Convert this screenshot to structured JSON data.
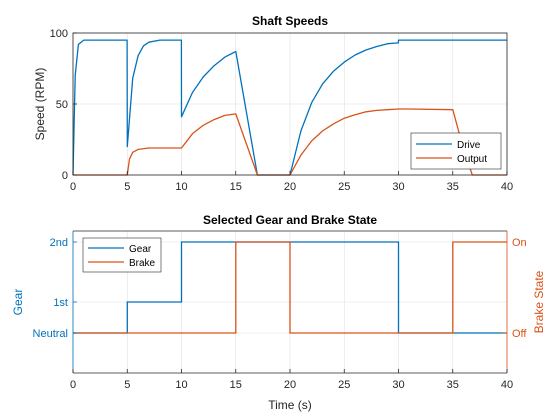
{
  "colors": {
    "drive": "#0072BD",
    "output": "#D95319",
    "gear": "#0072BD",
    "brake": "#D95319"
  },
  "chart_data": [
    {
      "type": "line",
      "title": "Shaft Speeds",
      "xlabel": "",
      "ylabel": "Speed (RPM)",
      "xlim": [
        0,
        40
      ],
      "ylim": [
        0,
        100
      ],
      "xticks": [
        "0",
        "5",
        "10",
        "15",
        "20",
        "25",
        "30",
        "35",
        "40"
      ],
      "yticks": [
        "0",
        "50",
        "100"
      ],
      "grid": true,
      "legend_position": "bottom-right",
      "series": [
        {
          "name": "Drive",
          "x": [
            0,
            0.2,
            0.5,
            1,
            2,
            4.99,
            5,
            5.5,
            6,
            6.5,
            7,
            8,
            9.99,
            10,
            11,
            12,
            13,
            14,
            15,
            17,
            17.5,
            20,
            21,
            22,
            23,
            24,
            25,
            26,
            27,
            28,
            29,
            29.99,
            30,
            31,
            40
          ],
          "y": [
            0,
            70,
            92,
            95,
            95,
            95,
            20,
            68,
            84,
            91,
            93.5,
            95,
            95,
            41,
            58,
            69,
            77,
            83,
            87,
            0,
            0,
            0,
            31,
            51,
            64,
            73,
            79.5,
            84.5,
            88,
            90.5,
            92.5,
            93,
            95,
            95,
            95
          ]
        },
        {
          "name": "Output",
          "x": [
            0,
            5,
            5.2,
            5.5,
            6,
            7,
            9.99,
            10,
            11,
            12,
            13,
            14,
            15,
            17,
            20,
            21,
            22,
            23,
            24,
            25,
            26,
            27,
            28,
            29,
            30,
            31,
            35,
            36,
            36.8,
            40
          ],
          "y": [
            0,
            0,
            11,
            16,
            18,
            19,
            19,
            19,
            29,
            35,
            39,
            42,
            43,
            0,
            0,
            14,
            24,
            31,
            36,
            40,
            42.5,
            44.5,
            45.5,
            46,
            46.5,
            46.5,
            46,
            18,
            0,
            0
          ]
        }
      ]
    },
    {
      "type": "line",
      "title": "Selected Gear and Brake State",
      "xlabel": "Time (s)",
      "ylabel": "Gear",
      "ylabel_right": "Brake State",
      "xlim": [
        0,
        40
      ],
      "xticks": [
        "0",
        "5",
        "10",
        "15",
        "20",
        "25",
        "30",
        "35",
        "40"
      ],
      "yticks_left": [
        "Neutral",
        "1st",
        "2nd"
      ],
      "yticks_right": [
        "Off",
        "On"
      ],
      "grid": true,
      "legend_position": "top-left",
      "series": [
        {
          "name": "Gear",
          "axis": "left",
          "x": [
            0,
            5,
            5,
            10,
            10,
            30,
            30,
            40
          ],
          "y": [
            0,
            0,
            1,
            1,
            2,
            2,
            0,
            0
          ]
        },
        {
          "name": "Brake",
          "axis": "right",
          "x": [
            0,
            15,
            15,
            20,
            20,
            35,
            35,
            40
          ],
          "y": [
            0,
            0,
            1,
            1,
            0,
            0,
            1,
            1
          ]
        }
      ]
    }
  ]
}
